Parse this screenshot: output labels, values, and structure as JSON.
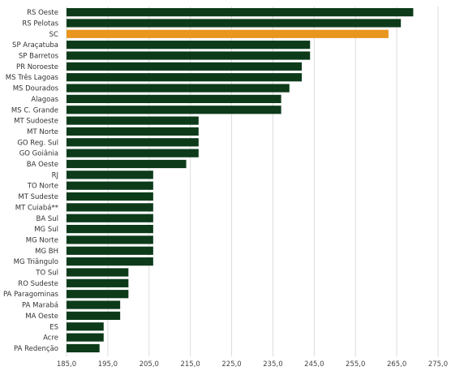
{
  "chart_data": {
    "type": "bar",
    "orientation": "horizontal",
    "categories": [
      "RS Oeste",
      "RS Pelotas",
      "SC",
      "SP Araçatuba",
      "SP Barretos",
      "PR Noroeste",
      "MS Três Lagoas",
      "MS Dourados",
      "Alagoas",
      "MS C. Grande",
      "MT Sudoeste",
      "MT Norte",
      "GO Reg. Sul",
      "GO Goiânia",
      "BA Oeste",
      "RJ",
      "TO Norte",
      "MT Sudeste",
      "MT Cuiabá**",
      "BA Sul",
      "MG Sul",
      "MG Norte",
      "MG BH",
      "MG Triângulo",
      "TO Sul",
      "RO Sudeste",
      "PA Paragominas",
      "PA Marabá",
      "MA Oeste",
      "ES",
      "Acre",
      "PA Redenção"
    ],
    "values": [
      269,
      266,
      263,
      244,
      244,
      242,
      242,
      239,
      237,
      237,
      217,
      217,
      217,
      217,
      214,
      206,
      206,
      206,
      206,
      206,
      206,
      206,
      206,
      206,
      200,
      200,
      200,
      198,
      198,
      194,
      194,
      193
    ],
    "highlight_category": "SC",
    "colors": {
      "bar": "#0d3b1a",
      "highlight": "#e8961e",
      "grid": "#dcdcdc"
    },
    "xlim": [
      185,
      275
    ],
    "xticks": [
      "185,0",
      "195,0",
      "205,0",
      "215,0",
      "225,0",
      "235,0",
      "245,0",
      "255,0",
      "265,0",
      "275,0"
    ],
    "xtick_values": [
      185,
      195,
      205,
      215,
      225,
      235,
      245,
      255,
      265,
      275
    ],
    "grid": "vertical",
    "legend": "none"
  }
}
